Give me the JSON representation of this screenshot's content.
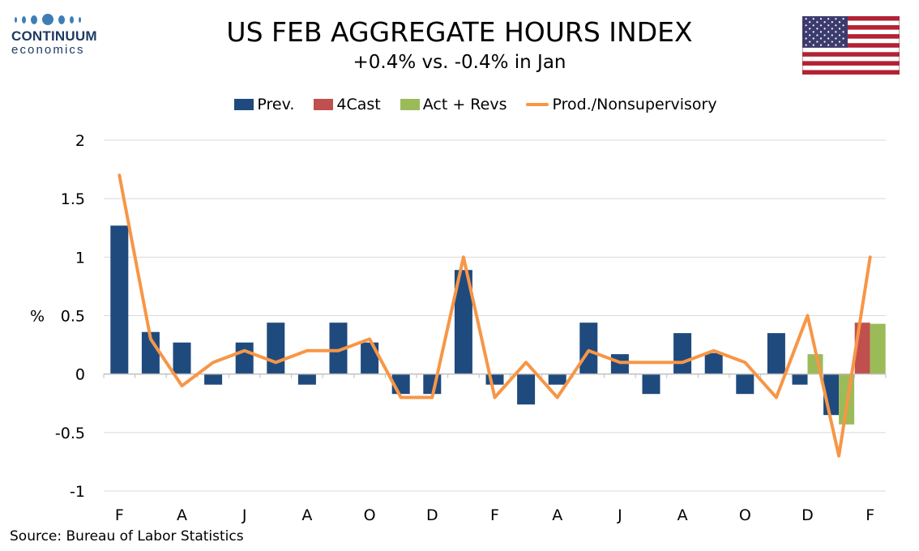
{
  "brand": {
    "name": "CONTINUUM",
    "sub": "economics"
  },
  "header": {
    "title": "US FEB AGGREGATE HOURS INDEX",
    "subtitle": "+0.4% vs. -0.4% in Jan"
  },
  "flag": "us-flag",
  "source": "Source: Bureau of Labor Statistics",
  "chart_data": {
    "type": "bar",
    "ylabel": "%",
    "xlabel": "",
    "ylim": [
      -1,
      2
    ],
    "yticks": [
      2,
      1.5,
      1,
      0.5,
      0,
      -0.5,
      -1
    ],
    "grid": true,
    "legend_position": "top",
    "tick_labels": [
      "F",
      "A",
      "J",
      "A",
      "O",
      "D",
      "F",
      "A",
      "J",
      "A",
      "O",
      "D",
      "F"
    ],
    "colors": {
      "Prev.": "#1f4a7d",
      "4Cast": "#c0504d",
      "Act + Revs": "#9bbb59",
      "Prod./Nonsupervisory": "#f79646"
    },
    "series": [
      {
        "name": "Prev.",
        "kind": "bar",
        "values": [
          1.27,
          0.36,
          0.27,
          -0.09,
          0.27,
          0.44,
          -0.09,
          0.44,
          0.27,
          -0.17,
          -0.17,
          0.89,
          -0.09,
          -0.26,
          -0.09,
          0.44,
          0.17,
          -0.17,
          0.35,
          0.18,
          -0.17,
          0.35,
          -0.09,
          -0.35,
          null
        ]
      },
      {
        "name": "4Cast",
        "kind": "bar",
        "values": [
          null,
          null,
          null,
          null,
          null,
          null,
          null,
          null,
          null,
          null,
          null,
          null,
          null,
          null,
          null,
          null,
          null,
          null,
          null,
          null,
          null,
          null,
          null,
          null,
          0.44
        ]
      },
      {
        "name": "Act + Revs",
        "kind": "bar",
        "values": [
          null,
          null,
          null,
          null,
          null,
          null,
          null,
          null,
          null,
          null,
          null,
          null,
          null,
          null,
          null,
          null,
          null,
          null,
          null,
          null,
          null,
          null,
          0.17,
          -0.43,
          0.43
        ]
      },
      {
        "name": "Prod./Nonsupervisory",
        "kind": "line",
        "values": [
          1.7,
          0.3,
          -0.1,
          0.1,
          0.2,
          0.1,
          0.2,
          0.2,
          0.3,
          -0.2,
          -0.2,
          1.0,
          -0.2,
          0.1,
          -0.2,
          0.2,
          0.1,
          0.1,
          0.1,
          0.2,
          0.1,
          -0.2,
          0.5,
          -0.7,
          1.0
        ]
      }
    ]
  }
}
